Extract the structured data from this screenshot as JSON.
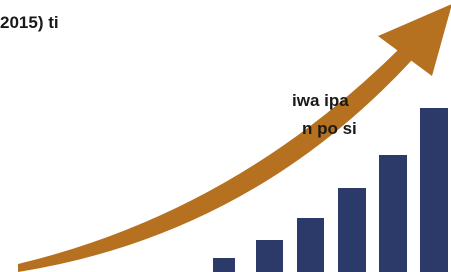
{
  "text_lines": [
    "2015) ti",
    "iwa ipa",
    "n po si"
  ]
}
